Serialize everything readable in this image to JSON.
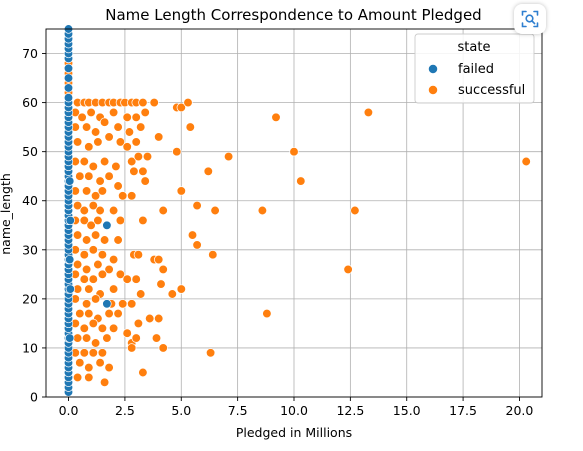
{
  "colors": {
    "failed": "#1f77b4",
    "successful": "#ff7f0e",
    "scan_icon": "#2f7fd0"
  },
  "icons": {
    "scan_button": "scan-icon"
  },
  "chart_data": {
    "type": "scatter",
    "title": "Name Length Correspondence to Amount Pledged",
    "xlabel": "Pledged in Millions",
    "ylabel": "name_length",
    "xlim": [
      -1.0,
      21.0
    ],
    "ylim": [
      0,
      75
    ],
    "xticks": [
      0.0,
      2.5,
      5.0,
      7.5,
      10.0,
      12.5,
      15.0,
      17.5,
      20.0
    ],
    "xtick_labels": [
      "0.0",
      "2.5",
      "5.0",
      "7.5",
      "10.0",
      "12.5",
      "15.0",
      "17.5",
      "20.0"
    ],
    "yticks": [
      0,
      10,
      20,
      30,
      40,
      50,
      60,
      70
    ],
    "ytick_labels": [
      "0",
      "10",
      "20",
      "30",
      "40",
      "50",
      "60",
      "70"
    ],
    "grid": true,
    "legend": {
      "title": "state",
      "placement": "top-right",
      "entries": [
        "failed",
        "successful"
      ]
    },
    "series": [
      {
        "name": "failed",
        "color": "#1f77b4",
        "points": [
          [
            0.0,
            1
          ],
          [
            0.0,
            2
          ],
          [
            0.0,
            3
          ],
          [
            0.0,
            4
          ],
          [
            0.0,
            5
          ],
          [
            0.0,
            6
          ],
          [
            0.0,
            7
          ],
          [
            0.0,
            8
          ],
          [
            0.0,
            9
          ],
          [
            0.0,
            10
          ],
          [
            0.0,
            11
          ],
          [
            0.0,
            12
          ],
          [
            0.0,
            13
          ],
          [
            0.0,
            14
          ],
          [
            0.0,
            15
          ],
          [
            0.0,
            16
          ],
          [
            0.0,
            17
          ],
          [
            0.0,
            18
          ],
          [
            0.0,
            19
          ],
          [
            0.0,
            20
          ],
          [
            0.0,
            21
          ],
          [
            0.0,
            22
          ],
          [
            0.0,
            23
          ],
          [
            0.0,
            24
          ],
          [
            0.0,
            25
          ],
          [
            0.0,
            26
          ],
          [
            0.0,
            27
          ],
          [
            0.0,
            28
          ],
          [
            0.0,
            29
          ],
          [
            0.0,
            30
          ],
          [
            0.0,
            31
          ],
          [
            0.0,
            32
          ],
          [
            0.0,
            33
          ],
          [
            0.0,
            34
          ],
          [
            0.0,
            35
          ],
          [
            0.0,
            36
          ],
          [
            0.0,
            37
          ],
          [
            0.0,
            38
          ],
          [
            0.0,
            39
          ],
          [
            0.0,
            40
          ],
          [
            0.0,
            41
          ],
          [
            0.0,
            42
          ],
          [
            0.0,
            43
          ],
          [
            0.0,
            44
          ],
          [
            0.0,
            45
          ],
          [
            0.0,
            46
          ],
          [
            0.0,
            47
          ],
          [
            0.0,
            48
          ],
          [
            0.0,
            49
          ],
          [
            0.0,
            50
          ],
          [
            0.0,
            51
          ],
          [
            0.0,
            52
          ],
          [
            0.0,
            53
          ],
          [
            0.0,
            54
          ],
          [
            0.0,
            55
          ],
          [
            0.0,
            56
          ],
          [
            0.0,
            57
          ],
          [
            0.0,
            58
          ],
          [
            0.0,
            59
          ],
          [
            0.0,
            60
          ],
          [
            0.0,
            61
          ],
          [
            0.0,
            63
          ],
          [
            0.0,
            65
          ],
          [
            0.0,
            67
          ],
          [
            0.0,
            69
          ],
          [
            0.0,
            70
          ],
          [
            0.0,
            71
          ],
          [
            0.0,
            72
          ],
          [
            0.0,
            73
          ],
          [
            0.0,
            74
          ],
          [
            0.0,
            75
          ],
          [
            0.05,
            12
          ],
          [
            0.05,
            28
          ],
          [
            0.05,
            44
          ],
          [
            0.08,
            22
          ],
          [
            0.08,
            36
          ],
          [
            1.7,
            35
          ],
          [
            1.7,
            19
          ]
        ]
      },
      {
        "name": "successful",
        "color": "#ff7f0e",
        "points": [
          [
            0.0,
            66
          ],
          [
            0.0,
            64
          ],
          [
            0.0,
            62
          ],
          [
            0.0,
            68
          ],
          [
            0.4,
            60
          ],
          [
            0.7,
            60
          ],
          [
            0.9,
            60
          ],
          [
            1.2,
            60
          ],
          [
            1.5,
            60
          ],
          [
            1.8,
            60
          ],
          [
            2.0,
            60
          ],
          [
            2.3,
            60
          ],
          [
            2.5,
            60
          ],
          [
            2.8,
            60
          ],
          [
            3.0,
            60
          ],
          [
            3.3,
            60
          ],
          [
            3.8,
            60
          ],
          [
            4.8,
            59
          ],
          [
            5.0,
            59
          ],
          [
            5.3,
            60
          ],
          [
            0.3,
            58
          ],
          [
            0.6,
            57
          ],
          [
            1.0,
            58
          ],
          [
            1.4,
            57
          ],
          [
            2.0,
            58
          ],
          [
            2.6,
            57
          ],
          [
            3.0,
            57
          ],
          [
            3.4,
            58
          ],
          [
            0.3,
            55
          ],
          [
            0.8,
            55
          ],
          [
            1.2,
            54
          ],
          [
            1.6,
            56
          ],
          [
            2.2,
            55
          ],
          [
            2.7,
            54
          ],
          [
            3.2,
            55
          ],
          [
            5.4,
            55
          ],
          [
            0.4,
            52
          ],
          [
            0.9,
            51
          ],
          [
            1.3,
            52
          ],
          [
            1.8,
            53
          ],
          [
            2.3,
            52
          ],
          [
            2.6,
            51
          ],
          [
            3.0,
            52
          ],
          [
            3.5,
            49
          ],
          [
            4.0,
            53
          ],
          [
            4.8,
            50
          ],
          [
            9.2,
            57
          ],
          [
            0.3,
            48
          ],
          [
            0.7,
            48
          ],
          [
            1.1,
            47
          ],
          [
            1.6,
            48
          ],
          [
            2.1,
            47
          ],
          [
            2.8,
            48
          ],
          [
            3.1,
            49
          ],
          [
            7.1,
            49
          ],
          [
            10.0,
            50
          ],
          [
            13.3,
            58
          ],
          [
            0.5,
            45
          ],
          [
            0.9,
            45
          ],
          [
            1.4,
            44
          ],
          [
            1.8,
            45
          ],
          [
            2.2,
            43
          ],
          [
            2.9,
            46
          ],
          [
            3.3,
            46
          ],
          [
            3.4,
            44
          ],
          [
            6.2,
            46
          ],
          [
            10.3,
            44
          ],
          [
            20.3,
            48
          ],
          [
            0.3,
            42
          ],
          [
            0.8,
            42
          ],
          [
            1.2,
            41
          ],
          [
            1.5,
            42
          ],
          [
            2.4,
            41
          ],
          [
            2.8,
            41
          ],
          [
            5.0,
            42
          ],
          [
            0.4,
            39
          ],
          [
            0.7,
            38
          ],
          [
            1.1,
            39
          ],
          [
            1.4,
            38
          ],
          [
            2.0,
            38
          ],
          [
            4.2,
            38
          ],
          [
            5.7,
            39
          ],
          [
            6.5,
            38
          ],
          [
            8.6,
            38
          ],
          [
            12.7,
            38
          ],
          [
            0.3,
            36
          ],
          [
            0.7,
            36
          ],
          [
            1.0,
            35
          ],
          [
            1.3,
            36
          ],
          [
            2.3,
            36
          ],
          [
            3.3,
            36
          ],
          [
            0.4,
            33
          ],
          [
            0.8,
            32
          ],
          [
            1.2,
            33
          ],
          [
            1.6,
            32
          ],
          [
            2.2,
            32
          ],
          [
            5.5,
            33
          ],
          [
            5.7,
            31
          ],
          [
            0.3,
            30
          ],
          [
            0.7,
            29
          ],
          [
            1.1,
            30
          ],
          [
            1.5,
            29
          ],
          [
            2.0,
            28
          ],
          [
            2.9,
            29
          ],
          [
            3.1,
            29
          ],
          [
            3.8,
            28
          ],
          [
            4.0,
            28
          ],
          [
            6.4,
            29
          ],
          [
            0.4,
            27
          ],
          [
            0.8,
            26
          ],
          [
            1.3,
            27
          ],
          [
            1.8,
            26
          ],
          [
            4.2,
            26
          ],
          [
            12.4,
            26
          ],
          [
            0.3,
            25
          ],
          [
            0.7,
            24
          ],
          [
            1.1,
            24
          ],
          [
            1.5,
            25
          ],
          [
            2.3,
            25
          ],
          [
            2.6,
            24
          ],
          [
            3.0,
            24
          ],
          [
            0.4,
            22
          ],
          [
            0.9,
            22
          ],
          [
            1.4,
            21
          ],
          [
            2.0,
            22
          ],
          [
            3.2,
            21
          ],
          [
            4.1,
            23
          ],
          [
            4.6,
            21
          ],
          [
            5.0,
            22
          ],
          [
            0.3,
            20
          ],
          [
            0.8,
            19
          ],
          [
            1.2,
            20
          ],
          [
            1.9,
            19
          ],
          [
            2.4,
            19
          ],
          [
            2.8,
            19
          ],
          [
            0.5,
            17
          ],
          [
            0.9,
            17
          ],
          [
            1.3,
            16
          ],
          [
            1.8,
            17
          ],
          [
            2.2,
            17
          ],
          [
            8.8,
            17
          ],
          [
            0.3,
            15
          ],
          [
            0.7,
            14
          ],
          [
            1.1,
            15
          ],
          [
            1.5,
            14
          ],
          [
            2.0,
            14
          ],
          [
            3.1,
            15
          ],
          [
            3.6,
            16
          ],
          [
            4.0,
            16
          ],
          [
            0.4,
            12
          ],
          [
            0.8,
            12
          ],
          [
            1.2,
            11
          ],
          [
            1.7,
            12
          ],
          [
            2.6,
            13
          ],
          [
            2.8,
            11
          ],
          [
            3.0,
            12
          ],
          [
            3.9,
            12
          ],
          [
            0.3,
            9
          ],
          [
            0.7,
            9
          ],
          [
            1.1,
            9
          ],
          [
            1.5,
            9
          ],
          [
            2.8,
            10
          ],
          [
            4.2,
            10
          ],
          [
            6.3,
            9
          ],
          [
            0.5,
            7
          ],
          [
            0.9,
            6
          ],
          [
            1.4,
            7
          ],
          [
            1.8,
            6
          ],
          [
            3.3,
            5
          ],
          [
            0.4,
            4
          ],
          [
            0.9,
            4
          ],
          [
            1.6,
            3
          ]
        ]
      }
    ]
  }
}
